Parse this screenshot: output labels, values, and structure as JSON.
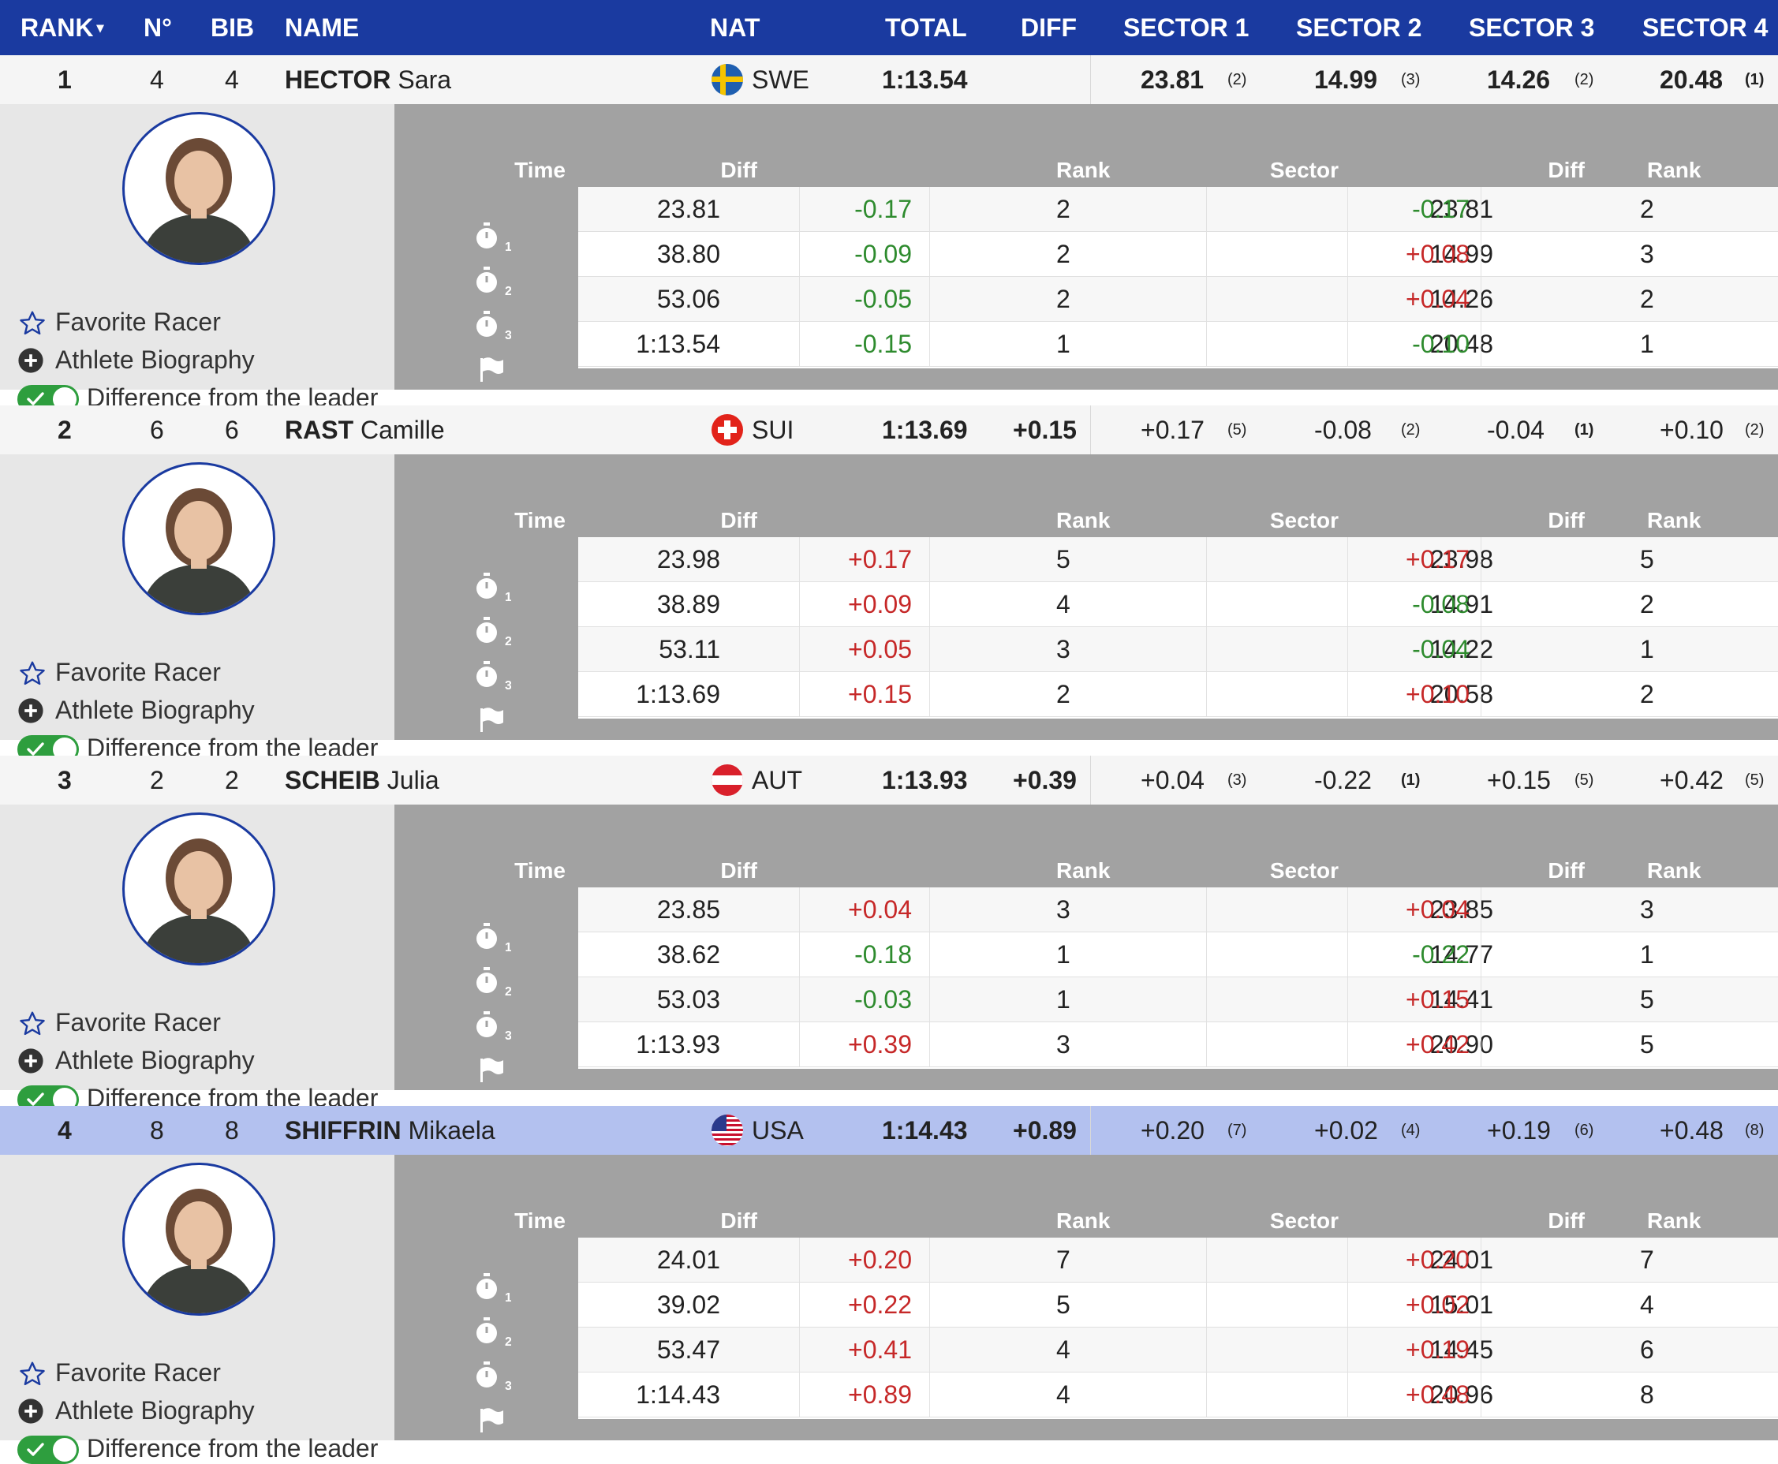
{
  "header": {
    "rank": "RANK",
    "rank_sort": "▾",
    "no": "N°",
    "bib": "BIB",
    "name": "NAME",
    "nat": "NAT",
    "total": "TOTAL",
    "diff": "DIFF",
    "sector1": "SECTOR 1",
    "sector2": "SECTOR 2",
    "sector3": "SECTOR 3",
    "sector4": "SECTOR 4"
  },
  "detail_headers": {
    "time": "Time",
    "diff": "Diff",
    "rank": "Rank",
    "sector": "Sector",
    "sector_diff": "Diff",
    "sector_rank": "Rank"
  },
  "links": {
    "favorite": "Favorite Racer",
    "biography": "Athlete Biography",
    "difference": "Difference from the leader"
  },
  "colors": {
    "header_bg": "#1a3aa0",
    "highlight_row": "#b3c1ef",
    "positive_diff": "#c62828",
    "negative_diff": "#2e8b2e",
    "toggle_on": "#2e9e3e"
  },
  "athletes": [
    {
      "rank": "1",
      "no": "4",
      "bib": "4",
      "last": "HECTOR",
      "first": "Sara",
      "nat": "SWE",
      "flag": "sweden-flag",
      "total": "1:13.54",
      "diff": "",
      "sectors": [
        {
          "value": "23.81",
          "rank": "(2)",
          "best": false
        },
        {
          "value": "14.99",
          "rank": "(3)",
          "best": false
        },
        {
          "value": "14.26",
          "rank": "(2)",
          "best": false
        },
        {
          "value": "20.48",
          "rank": "(1)",
          "best": true
        }
      ],
      "splits": [
        {
          "time": "23.81",
          "diff": "-0.17",
          "rank": "2",
          "sector": "23.81",
          "sdiff": "-0.17",
          "srank": "2"
        },
        {
          "time": "38.80",
          "diff": "-0.09",
          "rank": "2",
          "sector": "14.99",
          "sdiff": "+0.08",
          "srank": "3"
        },
        {
          "time": "53.06",
          "diff": "-0.05",
          "rank": "2",
          "sector": "14.26",
          "sdiff": "+0.04",
          "srank": "2"
        },
        {
          "time": "1:13.54",
          "diff": "-0.15",
          "rank": "1",
          "sector": "20.48",
          "sdiff": "-0.10",
          "srank": "1"
        }
      ]
    },
    {
      "rank": "2",
      "no": "6",
      "bib": "6",
      "last": "RAST",
      "first": "Camille",
      "nat": "SUI",
      "flag": "switzerland-flag",
      "total": "1:13.69",
      "diff": "+0.15",
      "sectors": [
        {
          "value": "+0.17",
          "rank": "(5)",
          "best": false
        },
        {
          "value": "-0.08",
          "rank": "(2)",
          "best": false
        },
        {
          "value": "-0.04",
          "rank": "(1)",
          "best": true
        },
        {
          "value": "+0.10",
          "rank": "(2)",
          "best": false
        }
      ],
      "splits": [
        {
          "time": "23.98",
          "diff": "+0.17",
          "rank": "5",
          "sector": "23.98",
          "sdiff": "+0.17",
          "srank": "5"
        },
        {
          "time": "38.89",
          "diff": "+0.09",
          "rank": "4",
          "sector": "14.91",
          "sdiff": "-0.08",
          "srank": "2"
        },
        {
          "time": "53.11",
          "diff": "+0.05",
          "rank": "3",
          "sector": "14.22",
          "sdiff": "-0.04",
          "srank": "1"
        },
        {
          "time": "1:13.69",
          "diff": "+0.15",
          "rank": "2",
          "sector": "20.58",
          "sdiff": "+0.10",
          "srank": "2"
        }
      ]
    },
    {
      "rank": "3",
      "no": "2",
      "bib": "2",
      "last": "SCHEIB",
      "first": "Julia",
      "nat": "AUT",
      "flag": "austria-flag",
      "total": "1:13.93",
      "diff": "+0.39",
      "sectors": [
        {
          "value": "+0.04",
          "rank": "(3)",
          "best": false
        },
        {
          "value": "-0.22",
          "rank": "(1)",
          "best": true
        },
        {
          "value": "+0.15",
          "rank": "(5)",
          "best": false
        },
        {
          "value": "+0.42",
          "rank": "(5)",
          "best": false
        }
      ],
      "splits": [
        {
          "time": "23.85",
          "diff": "+0.04",
          "rank": "3",
          "sector": "23.85",
          "sdiff": "+0.04",
          "srank": "3"
        },
        {
          "time": "38.62",
          "diff": "-0.18",
          "rank": "1",
          "sector": "14.77",
          "sdiff": "-0.22",
          "srank": "1"
        },
        {
          "time": "53.03",
          "diff": "-0.03",
          "rank": "1",
          "sector": "14.41",
          "sdiff": "+0.15",
          "srank": "5"
        },
        {
          "time": "1:13.93",
          "diff": "+0.39",
          "rank": "3",
          "sector": "20.90",
          "sdiff": "+0.42",
          "srank": "5"
        }
      ]
    },
    {
      "rank": "4",
      "no": "8",
      "bib": "8",
      "last": "SHIFFRIN",
      "first": "Mikaela",
      "nat": "USA",
      "flag": "usa-flag",
      "total": "1:14.43",
      "diff": "+0.89",
      "sectors": [
        {
          "value": "+0.20",
          "rank": "(7)",
          "best": false
        },
        {
          "value": "+0.02",
          "rank": "(4)",
          "best": false
        },
        {
          "value": "+0.19",
          "rank": "(6)",
          "best": false
        },
        {
          "value": "+0.48",
          "rank": "(8)",
          "best": false
        }
      ],
      "splits": [
        {
          "time": "24.01",
          "diff": "+0.20",
          "rank": "7",
          "sector": "24.01",
          "sdiff": "+0.20",
          "srank": "7"
        },
        {
          "time": "39.02",
          "diff": "+0.22",
          "rank": "5",
          "sector": "15.01",
          "sdiff": "+0.02",
          "srank": "4"
        },
        {
          "time": "53.47",
          "diff": "+0.41",
          "rank": "4",
          "sector": "14.45",
          "sdiff": "+0.19",
          "srank": "6"
        },
        {
          "time": "1:14.43",
          "diff": "+0.89",
          "rank": "4",
          "sector": "20.96",
          "sdiff": "+0.48",
          "srank": "8"
        }
      ]
    }
  ]
}
